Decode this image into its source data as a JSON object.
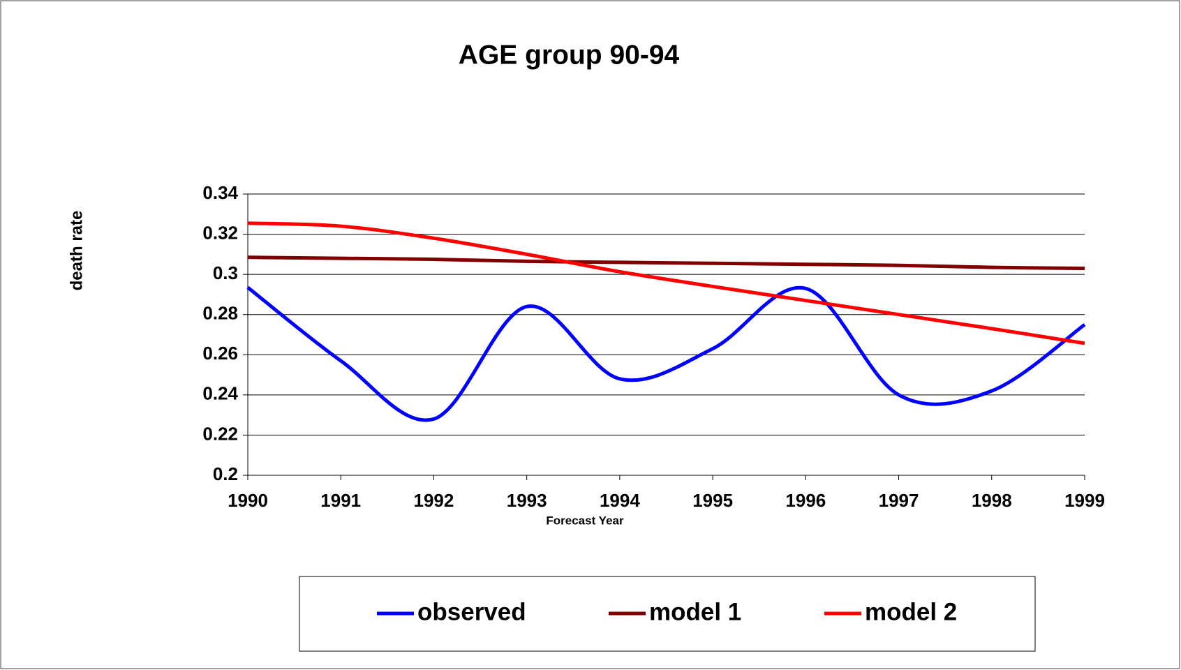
{
  "chart_data": {
    "type": "line",
    "title": "AGE group 90-94",
    "x_label": "Forecast Year",
    "y_label": "death rate",
    "x": [
      1990,
      1991,
      1992,
      1993,
      1994,
      1995,
      1996,
      1997,
      1998,
      1999
    ],
    "xlim": [
      1990,
      1999
    ],
    "xticks": [
      1990,
      1991,
      1992,
      1993,
      1994,
      1995,
      1996,
      1997,
      1998,
      1999
    ],
    "ylim": [
      0.2,
      0.34
    ],
    "yticks": [
      0.2,
      0.22,
      0.24,
      0.26,
      0.28,
      0.3,
      0.32,
      0.34
    ],
    "grid": true,
    "smooth": true,
    "legend": "bottom",
    "series": [
      {
        "name": "observed",
        "color": "#0000ff",
        "values": [
          0.2935,
          0.257,
          0.228,
          0.284,
          0.248,
          0.263,
          0.293,
          0.24,
          0.242,
          0.275
        ]
      },
      {
        "name": "model 1",
        "color": "#800000",
        "values": [
          0.3085,
          0.308,
          0.3075,
          0.3065,
          0.306,
          0.3055,
          0.305,
          0.3045,
          0.3035,
          0.303
        ]
      },
      {
        "name": "model 2",
        "color": "#ff0000",
        "values": [
          0.3255,
          0.324,
          0.318,
          0.31,
          0.3013,
          0.294,
          0.287,
          0.28,
          0.273,
          0.2657
        ]
      }
    ]
  }
}
